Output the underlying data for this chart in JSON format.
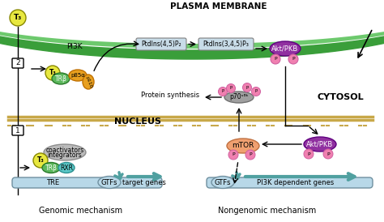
{
  "bg_color": "#ffffff",
  "plasma_membrane_color": "#3a9e3a",
  "plasma_membrane_inner": "#6dc96d",
  "nucleus_border_color": "#c8a84b",
  "cytosol_text": "CYTOSOL",
  "nucleus_text": "NUCLEUS",
  "plasma_membrane_text": "PLASMA MEMBRANE",
  "genomic_text": "Genomic mechanism",
  "nongenomic_text": "Nongenomic mechanism",
  "t3_color": "#e8e840",
  "trb_color": "#5cb85c",
  "rxr_color": "#5bc8c8",
  "p85a_color": "#e8a020",
  "p110_color": "#e8a020",
  "coact_color": "#b0b0b0",
  "mtor_color": "#f0a070",
  "aktpkb_color": "#9030a0",
  "p70_color": "#a0a0a0",
  "pink_p_color": "#f080b0",
  "box_color": "#c8dce8",
  "box_edge": "#808080",
  "arrow_color": "#404040",
  "gene_bar_color": "#b8d8e8",
  "dna_line_color": "#c8a848"
}
